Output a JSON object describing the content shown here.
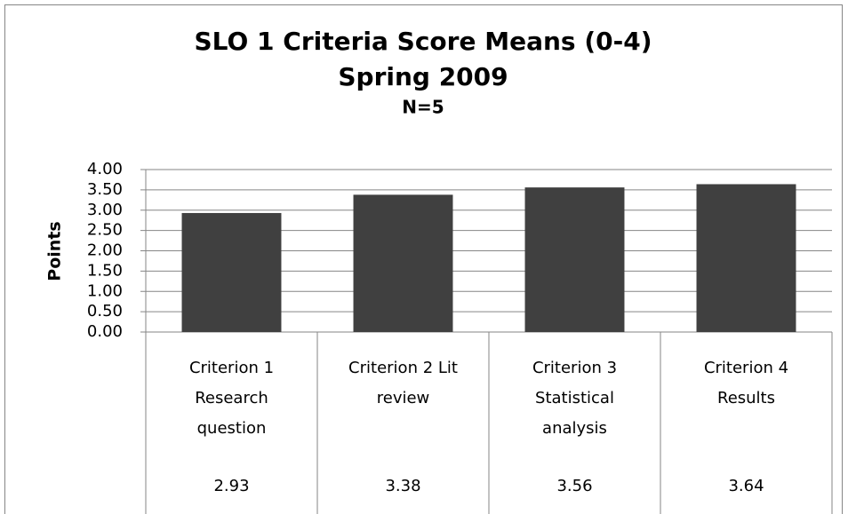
{
  "chart_data": {
    "type": "bar",
    "title": "SLO 1 Criteria Score Means (0-4)",
    "subtitle": "Spring 2009",
    "annotation": "N=5",
    "y_label": "Points",
    "categories": [
      "Criterion 1 Research question",
      "Criterion 2 Lit review",
      "Criterion 3 Statistical analysis",
      "Criterion 4 Results"
    ],
    "values": [
      2.93,
      3.38,
      3.56,
      3.64
    ],
    "color": "#404040",
    "ylim": [
      0,
      4
    ],
    "yticks": [
      {
        "value": 0,
        "label": "0.00"
      },
      {
        "value": 0.5,
        "label": "0.50"
      },
      {
        "value": 1,
        "label": "1.00"
      },
      {
        "value": 1.5,
        "label": "1.50"
      },
      {
        "value": 2,
        "label": "2.00"
      },
      {
        "value": 2.5,
        "label": "2.50"
      },
      {
        "value": 3,
        "label": "3.00"
      },
      {
        "value": 3.5,
        "label": "3.50"
      },
      {
        "value": 4,
        "label": "4.00"
      }
    ],
    "grid": true
  }
}
